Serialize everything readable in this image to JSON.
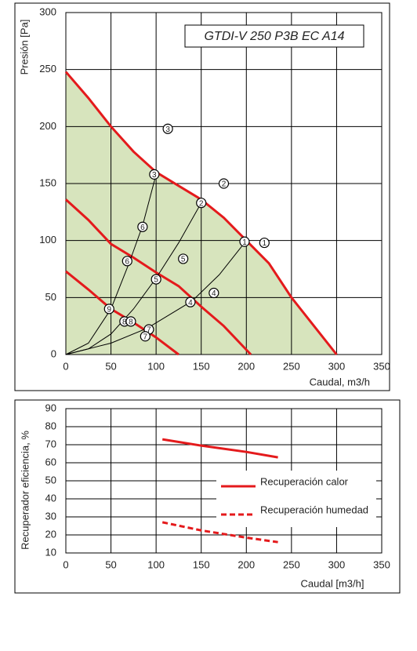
{
  "chart_data": [
    {
      "type": "line",
      "annotation": "GTDI-V 250 P3B EC A14",
      "x_label": "Caudal, m3/h",
      "y_label": "Presión [Pa]",
      "xlim": [
        0,
        350
      ],
      "xticks": [
        0,
        50,
        100,
        150,
        200,
        250,
        300,
        350
      ],
      "ylim": [
        0,
        300
      ],
      "yticks": [
        0,
        50,
        100,
        150,
        200,
        250,
        300
      ],
      "grid": true,
      "series": [
        {
          "color": "#e41a1c",
          "fill": "#d7e4bd",
          "x": [
            0,
            25,
            50,
            75,
            100,
            125,
            150,
            175,
            200,
            225,
            250,
            275,
            300
          ],
          "values": [
            248,
            225,
            200,
            178,
            160,
            148,
            136,
            120,
            100,
            80,
            50,
            25,
            0
          ]
        },
        {
          "color": "#e41a1c",
          "x": [
            0,
            25,
            50,
            75,
            100,
            125,
            150,
            175,
            205
          ],
          "values": [
            136,
            118,
            97,
            85,
            72,
            60,
            42,
            25,
            0
          ]
        },
        {
          "color": "#e41a1c",
          "x": [
            0,
            25,
            50,
            75,
            100,
            125
          ],
          "values": [
            73,
            57,
            40,
            28,
            15,
            0
          ]
        },
        {
          "color": "#000000",
          "x": [
            0,
            25,
            50,
            70,
            85,
            100
          ],
          "values": [
            0,
            10,
            40,
            80,
            113,
            158
          ]
        },
        {
          "color": "#000000",
          "x": [
            0,
            25,
            50,
            75,
            100,
            125,
            150
          ],
          "values": [
            0,
            5,
            18,
            40,
            67,
            98,
            133
          ]
        },
        {
          "color": "#000000",
          "x": [
            0,
            50,
            90,
            140,
            170,
            200
          ],
          "values": [
            0,
            10,
            23,
            47,
            70,
            100
          ]
        }
      ],
      "markers": {
        "x": [
          113,
          175,
          98,
          150,
          198,
          220,
          85,
          68,
          130,
          100,
          138,
          164,
          48,
          65,
          72,
          92,
          88
        ],
        "y": [
          198,
          150,
          158,
          133,
          99,
          98,
          112,
          82,
          84,
          66,
          46,
          54,
          40,
          29,
          29,
          22,
          16
        ],
        "labels": [
          "3",
          "2",
          "3",
          "2",
          "1",
          "1",
          "6",
          "6",
          "5",
          "5",
          "4",
          "4",
          "9",
          "8",
          "8",
          "7",
          "7"
        ]
      }
    },
    {
      "type": "line",
      "x_label": "Caudal [m3/h]",
      "y_label": "Recuperador eficiencia, %",
      "xlim": [
        0,
        350
      ],
      "xticks": [
        0,
        50,
        100,
        150,
        200,
        250,
        300,
        350
      ],
      "ylim": [
        10,
        90
      ],
      "yticks": [
        10,
        20,
        30,
        40,
        50,
        60,
        70,
        80,
        90
      ],
      "grid": true,
      "legend": "right",
      "series": [
        {
          "name": "Recuperación calor",
          "color": "#e41a1c",
          "x": [
            107,
            150,
            200,
            235
          ],
          "values": [
            73,
            69.5,
            66,
            63
          ]
        },
        {
          "name": "Recuperación humedad",
          "color": "#e41a1c",
          "dash": true,
          "x": [
            107,
            150,
            200,
            235
          ],
          "values": [
            27,
            22.5,
            18.5,
            16
          ]
        }
      ]
    }
  ]
}
